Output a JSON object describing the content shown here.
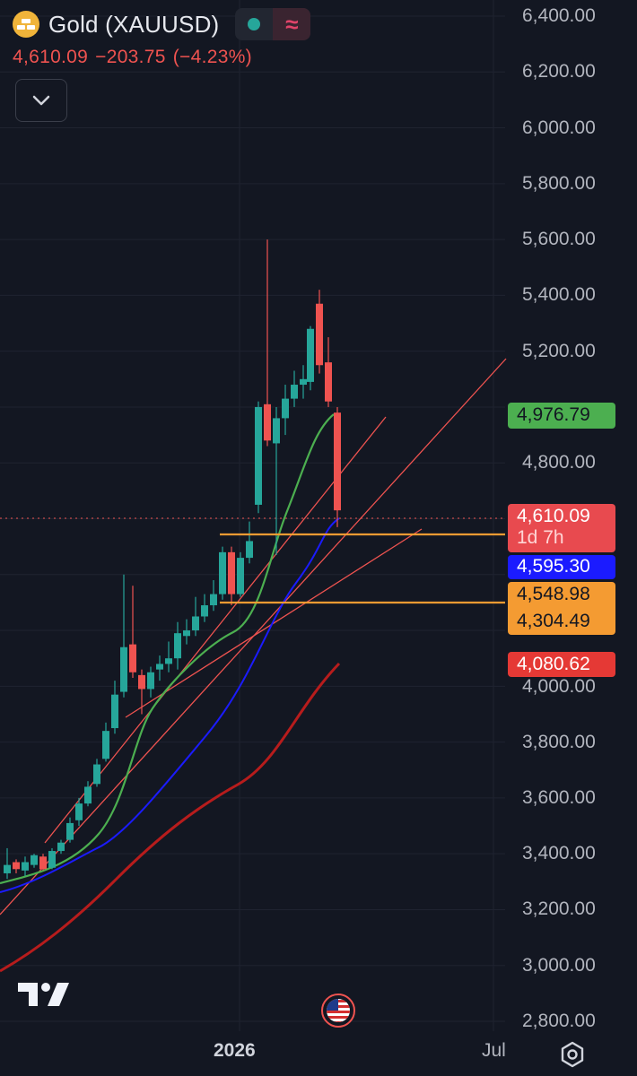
{
  "header": {
    "symbol_name": "Gold (XAUUSD)",
    "last_price": "4,610.09",
    "change": "−203.75",
    "change_pct": "(−4.23%)",
    "market_status_color": "#26a69a",
    "wave_icon": "≈"
  },
  "icons": {
    "logo": "gold-bars-icon",
    "collapse": "chevron-down-icon",
    "event_flag": "us-flag-icon",
    "brand": "tradingview-logo",
    "settings": "gear-icon"
  },
  "price_axis": {
    "labels": [
      "6,400.00",
      "6,200.00",
      "6,000.00",
      "5,800.00",
      "5,600.00",
      "5,400.00",
      "5,200.00",
      "4,800.00",
      "4,000.00",
      "3,800.00",
      "3,600.00",
      "3,400.00",
      "3,200.00",
      "3,000.00",
      "2,800.00"
    ]
  },
  "price_tags": [
    {
      "label": "4,976.79",
      "color": "#4caf50",
      "text_color": "#131722"
    },
    {
      "label": "4,610.09",
      "sub": "1d 7h",
      "color": "#e84a4f",
      "text_color": "#ffffff"
    },
    {
      "label": "4,595.30",
      "color": "#1b1bff",
      "text_color": "#ffffff"
    },
    {
      "label": "4,548.98",
      "color": "#f49b32",
      "text_color": "#131722"
    },
    {
      "label": "4,304.49",
      "color": "#f49b32",
      "text_color": "#131722"
    },
    {
      "label": "4,080.62",
      "color": "#e53935",
      "text_color": "#ffffff"
    }
  ],
  "time_axis": {
    "year": "2026",
    "month": "Jul"
  },
  "colors": {
    "background": "#131722",
    "up": "#26a69a",
    "down": "#ef5350",
    "ma_fast": "#4caf50",
    "ma_mid": "#1b1bff",
    "ma_slow": "#b71c1c",
    "channel": "#ef5350",
    "support": "#f49b32"
  }
}
